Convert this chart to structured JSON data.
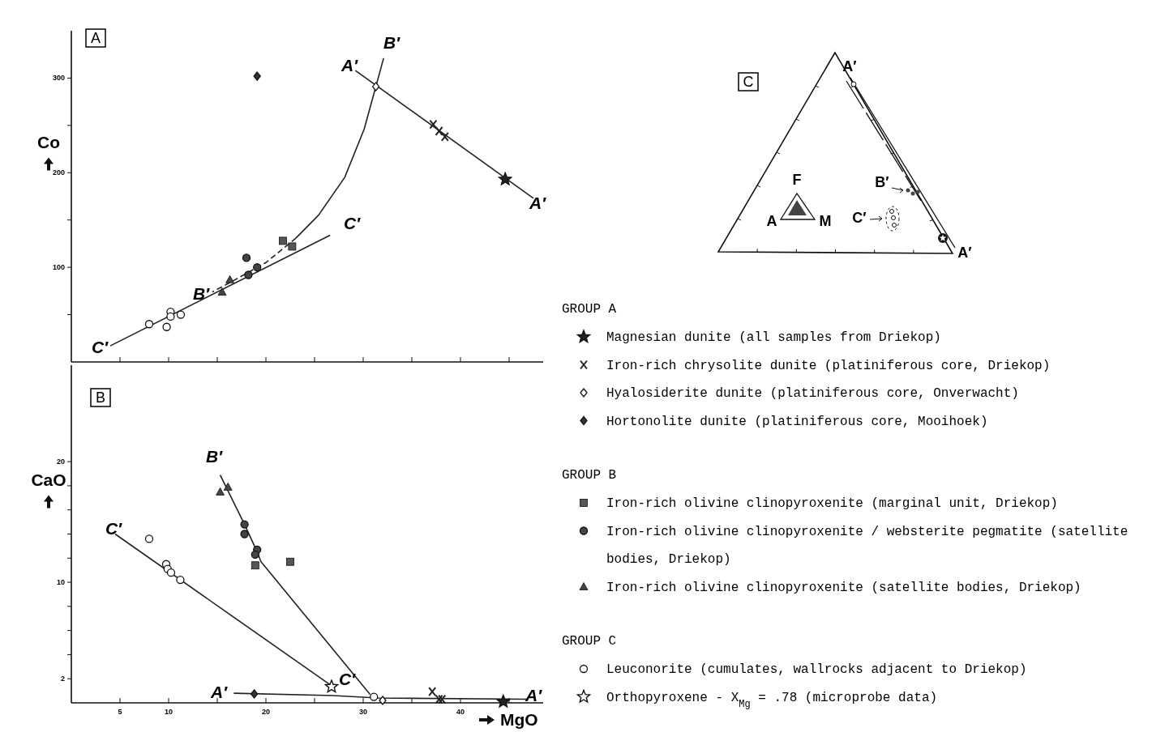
{
  "chart_data": [
    {
      "type": "scatter",
      "title": "A",
      "ylabel": "Co",
      "xlim": [
        0,
        48.5
      ],
      "xticks": [
        5,
        10,
        {
          "value": 15,
          "label": null
        },
        20,
        {
          "value": 25,
          "label": null
        },
        30,
        {
          "value": 35,
          "label": null
        },
        40,
        {
          "value": 45,
          "label": null
        }
      ],
      "ylim": [
        0,
        350
      ],
      "yticks": [
        {
          "value": 50,
          "label": null
        },
        100,
        {
          "value": 150,
          "label": null
        },
        200,
        {
          "value": 250,
          "label": null
        },
        300
      ],
      "tick_labels": "y",
      "annotations": [
        "A′",
        "A′",
        "B′",
        "B′",
        "C′",
        "C′"
      ],
      "series": [
        {
          "type": "line",
          "color": "#222222",
          "marker": "none",
          "line_style": "solid",
          "x": [
            29.2,
            47.5
          ],
          "values": [
            308,
            173
          ]
        },
        {
          "type": "line",
          "color": "#222222",
          "marker": "none",
          "line_style": "solid",
          "x": [
            32.1,
            31.3,
            30.1,
            28.1,
            25.4,
            23.1
          ],
          "values": [
            321,
            291,
            246,
            195,
            155,
            131
          ]
        },
        {
          "type": "line",
          "color": "#222222",
          "marker": "none",
          "line_style": "dashed",
          "x": [
            23.1,
            20.0,
            16.5,
            14.5
          ],
          "values": [
            131,
            105,
            85,
            74
          ]
        },
        {
          "type": "line",
          "color": "#222222",
          "marker": "none",
          "line_style": "solid",
          "x": [
            4.0,
            26.6
          ],
          "values": [
            17,
            134
          ]
        },
        {
          "marker": "star",
          "color": "#222222",
          "x": [
            44.6
          ],
          "values": [
            193
          ]
        },
        {
          "marker": "cross",
          "color": "#222222",
          "x": [
            37.2,
            37.8,
            38.4
          ],
          "values": [
            251,
            244,
            238
          ]
        },
        {
          "marker": "diamond",
          "color": "#ffffff",
          "x": [
            31.3
          ],
          "values": [
            291
          ]
        },
        {
          "marker": "diamond",
          "color": "#333333",
          "x": [
            19.1
          ],
          "values": [
            302
          ]
        },
        {
          "marker": "square",
          "color": "#555555",
          "x": [
            21.75,
            22.7
          ],
          "values": [
            128,
            122
          ]
        },
        {
          "marker": "circle",
          "color": "#444444",
          "x": [
            18.0,
            18.2,
            19.1
          ],
          "values": [
            110,
            92,
            100
          ]
        },
        {
          "marker": "triangle",
          "color": "#444444",
          "x": [
            15.5,
            16.3
          ],
          "values": [
            74,
            87
          ]
        },
        {
          "marker": "circle",
          "color": "#ffffff",
          "x": [
            8.0,
            9.8,
            10.2,
            10.2,
            11.25
          ],
          "values": [
            40,
            37,
            53,
            48,
            50
          ]
        }
      ]
    },
    {
      "type": "scatter",
      "title": "B",
      "xlabel": "MgO",
      "ylabel": "CaO",
      "xlim": [
        0,
        48.5
      ],
      "xticks": [
        5,
        10,
        {
          "value": 15,
          "label": null
        },
        20,
        {
          "value": 25,
          "label": null
        },
        30,
        {
          "value": 35,
          "label": null
        },
        40,
        {
          "value": 45,
          "label": null
        }
      ],
      "ylim": [
        0,
        28
      ],
      "yticks": [
        2,
        {
          "value": 4,
          "label": null
        },
        {
          "value": 6,
          "label": null
        },
        {
          "value": 8,
          "label": null
        },
        10,
        {
          "value": 12,
          "label": null
        },
        {
          "value": 14,
          "label": null
        },
        {
          "value": 16,
          "label": null
        },
        {
          "value": 18,
          "label": null
        },
        20
      ],
      "legend": "right",
      "annotations": [
        "GROUP A",
        "GROUP B",
        "GROUP C",
        "B′",
        "C′",
        "A′",
        "C′",
        "A′"
      ],
      "series": [
        {
          "type": "line",
          "color": "#222222",
          "marker": "none",
          "line_style": "solid",
          "x": [
            15.3,
            17.8,
            19.0,
            19.5,
            30.7
          ],
          "values": [
            18.9,
            14.8,
            12.7,
            11.7,
            0.7
          ]
        },
        {
          "type": "line",
          "color": "#222222",
          "marker": "none",
          "line_style": "solid",
          "x": [
            4.5,
            26.6
          ],
          "values": [
            14.0,
            1.5
          ]
        },
        {
          "type": "line",
          "color": "#222222",
          "marker": "none",
          "line_style": "solid",
          "x": [
            16.7,
            26.9,
            31.5,
            46.8
          ],
          "values": [
            0.8,
            0.6,
            0.4,
            0.3
          ]
        },
        {
          "name": "Magnesian dunite (all samples from Driekop)",
          "marker": "star",
          "color": "#222222",
          "x": [
            44.4
          ],
          "values": [
            0.1
          ]
        },
        {
          "name": "Iron-rich chrysolite dunite (platiniferous core, Driekop)",
          "marker": "cross",
          "color": "#222222",
          "x": [
            37.1,
            37.8,
            38.1
          ],
          "values": [
            0.94,
            0.3,
            0.3
          ]
        },
        {
          "name": "Hyalosiderite dunite (platiniferous core, Onverwacht)",
          "marker": "diamond",
          "color": "#ffffff",
          "x": [
            32.0
          ],
          "values": [
            0.2
          ]
        },
        {
          "name": "Hortonolite dunite (platiniferous core, Mooihoek)",
          "marker": "diamond",
          "color": "#333333",
          "x": [
            18.8
          ],
          "values": [
            0.74
          ]
        },
        {
          "name": "Iron-rich olivine clinopyroxenite (marginal unit, Driekop)",
          "marker": "square",
          "color": "#555555",
          "x": [
            18.9,
            22.5
          ],
          "values": [
            11.4,
            11.7
          ]
        },
        {
          "name": "Iron-rich olivine clinopyroxenite / websterite pegmatite (satellite bodies, Driekop)",
          "marker": "circle",
          "color": "#444444",
          "x": [
            17.8,
            17.8,
            19.1,
            18.9
          ],
          "values": [
            14.8,
            14.0,
            12.7,
            12.3
          ]
        },
        {
          "name": "Iron-rich olivine clinopyroxenite (satellite bodies, Driekop)",
          "marker": "triangle",
          "color": "#444444",
          "x": [
            15.3,
            16.1
          ],
          "values": [
            17.5,
            17.9
          ]
        },
        {
          "name": "Leuconorite (cumulates, wallrocks adjacent to Driekop)",
          "marker": "circle",
          "color": "#ffffff",
          "x": [
            8.0,
            9.75,
            9.9,
            10.25,
            11.2,
            31.1
          ],
          "values": [
            13.6,
            11.5,
            11.1,
            10.8,
            10.2,
            0.5
          ]
        },
        {
          "name": "Orthopyroxene - X$_{Mg}$ = .78 (microprobe data)",
          "marker": "star",
          "color": "#ffffff",
          "x": [
            26.75
          ],
          "values": [
            1.34
          ]
        }
      ]
    },
    {
      "type": "other",
      "title": "C",
      "annotations": [
        "F",
        "A",
        "M",
        "A′",
        "A′",
        "B′",
        "C′"
      ]
    }
  ]
}
